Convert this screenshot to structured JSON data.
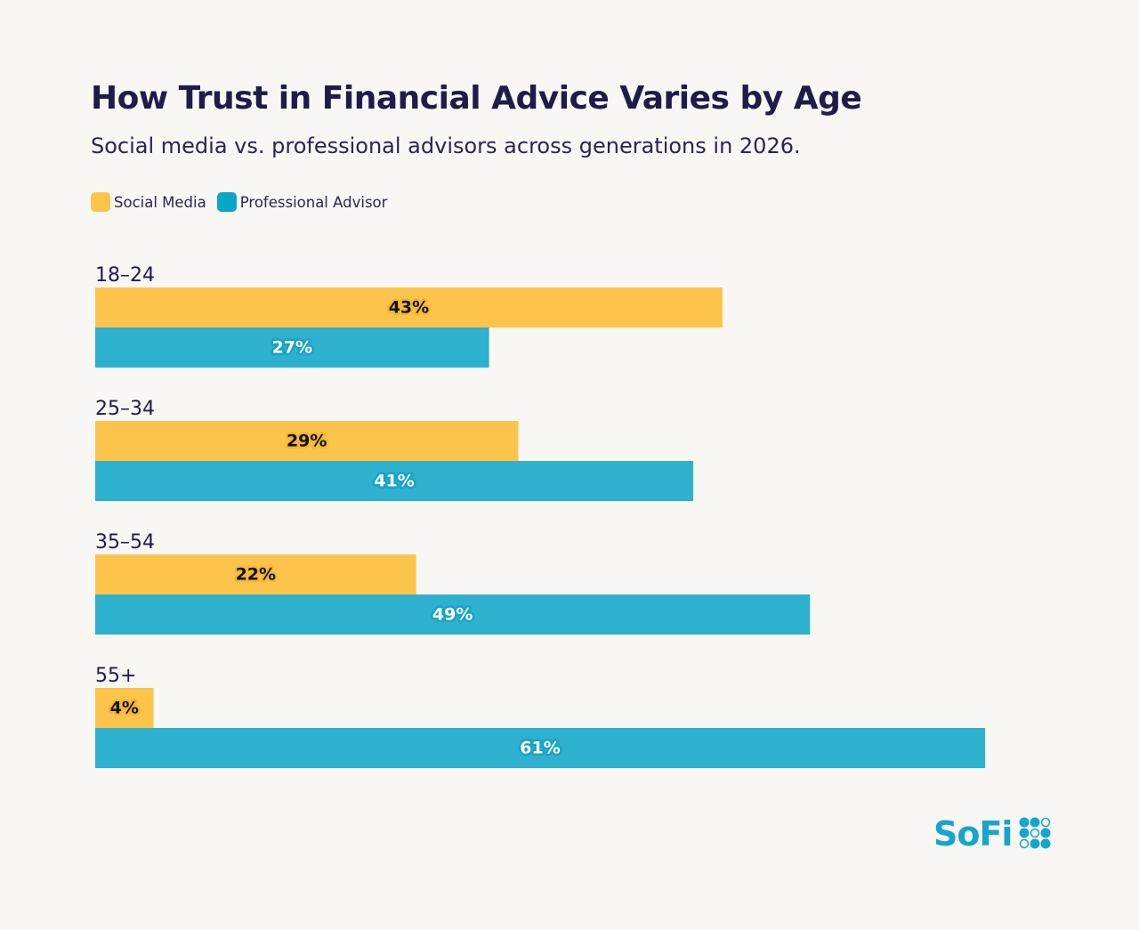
{
  "chart_data": {
    "type": "bar",
    "orientation": "horizontal",
    "title": "How Trust in Financial Advice Varies by Age",
    "subtitle": "Social media vs. professional advisors across generations in 2026.",
    "categories": [
      "18–24",
      "25–34",
      "35–54",
      "55+"
    ],
    "series": [
      {
        "name": "Social Media",
        "values": [
          43,
          29,
          22,
          4
        ],
        "color": "#fdc44b",
        "label_color": "#111111"
      },
      {
        "name": "Professional Advisor",
        "values": [
          27,
          41,
          49,
          61
        ],
        "color": "#2eb0cf",
        "label_color": "#ffffff"
      }
    ],
    "value_suffix": "%",
    "xlim": [
      0,
      61
    ],
    "grid": false,
    "legend": "top-left",
    "data_labels": true
  },
  "legend_swatch_colors": [
    "#fdc44b",
    "#0aa6c9"
  ],
  "brand": {
    "logo_text": "SoFi",
    "color": "#15a6cc"
  }
}
